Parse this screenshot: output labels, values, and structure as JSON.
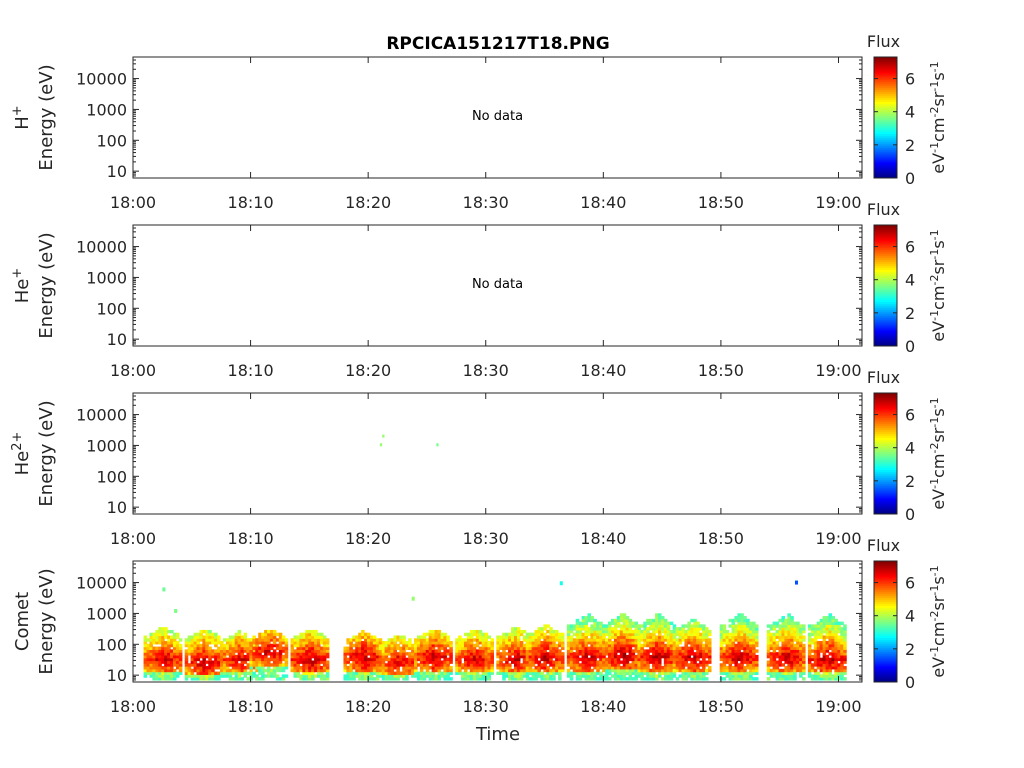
{
  "chart_data": {
    "type": "heatmap",
    "title": "RPCICA151217T18.PNG",
    "xlabel": "Time",
    "x_tick_labels": [
      "18:00",
      "18:10",
      "18:20",
      "18:30",
      "18:40",
      "18:50",
      "19:00"
    ],
    "xlim_minutes": [
      0,
      62
    ],
    "y_scale": "log",
    "ylim": [
      6,
      50000
    ],
    "y_tick_values": [
      10,
      100,
      1000,
      10000
    ],
    "y_tick_labels": [
      "10",
      "100",
      "1000",
      "10000"
    ],
    "colorbar": {
      "title": "Flux",
      "label": "eV⁻¹cm⁻²sr⁻¹s⁻¹",
      "range": [
        0,
        7.3
      ],
      "tick_values": [
        0,
        2,
        4,
        6
      ],
      "tick_labels": [
        "0",
        "2",
        "4",
        "6"
      ],
      "colormap": "jet"
    },
    "panels": [
      {
        "species_html": "H<tspan baseline-shift=\"super\" font-size=\"12\">+</tspan>",
        "species": "H+",
        "ylabel": "Energy (eV)",
        "no_data_text": "No data",
        "has_data": false
      },
      {
        "species": "He+",
        "ylabel": "Energy (eV)",
        "no_data_text": "No data",
        "has_data": false
      },
      {
        "species": "He2+",
        "ylabel": "Energy (eV)",
        "no_data_text": "",
        "has_data": true,
        "points": [
          {
            "t": 21.0,
            "e": 1050,
            "v": 3.8
          },
          {
            "t": 21.2,
            "e": 2000,
            "v": 3.8
          },
          {
            "t": 25.8,
            "e": 1050,
            "v": 3.6
          }
        ]
      },
      {
        "species": "Comet",
        "ylabel": "Energy (eV)",
        "no_data_text": "",
        "has_data": true,
        "bursts": [
          {
            "t": 2.5,
            "e_peak": 30,
            "e_top": 350,
            "v": 6.8
          },
          {
            "t": 6.0,
            "e_peak": 25,
            "e_top": 300,
            "v": 6.9
          },
          {
            "t": 9.0,
            "e_peak": 30,
            "e_top": 250,
            "v": 6.7
          },
          {
            "t": 11.5,
            "e_peak": 50,
            "e_top": 300,
            "v": 6.8
          },
          {
            "t": 15.0,
            "e_peak": 30,
            "e_top": 300,
            "v": 7.0
          },
          {
            "t": 19.5,
            "e_peak": 35,
            "e_top": 250,
            "v": 6.9
          },
          {
            "t": 22.5,
            "e_peak": 25,
            "e_top": 200,
            "v": 6.7
          },
          {
            "t": 25.5,
            "e_peak": 35,
            "e_top": 300,
            "v": 6.9
          },
          {
            "t": 29.0,
            "e_peak": 30,
            "e_top": 300,
            "v": 6.8
          },
          {
            "t": 32.5,
            "e_peak": 30,
            "e_top": 350,
            "v": 6.8
          },
          {
            "t": 35.0,
            "e_peak": 35,
            "e_top": 400,
            "v": 6.9
          },
          {
            "t": 38.5,
            "e_peak": 35,
            "e_top": 900,
            "v": 6.9
          },
          {
            "t": 41.5,
            "e_peak": 40,
            "e_top": 900,
            "v": 7.0
          },
          {
            "t": 44.5,
            "e_peak": 35,
            "e_top": 900,
            "v": 7.0
          },
          {
            "t": 47.5,
            "e_peak": 35,
            "e_top": 600,
            "v": 6.9
          },
          {
            "t": 51.5,
            "e_peak": 35,
            "e_top": 900,
            "v": 6.9
          },
          {
            "t": 55.5,
            "e_peak": 35,
            "e_top": 900,
            "v": 6.9
          },
          {
            "t": 59.0,
            "e_peak": 30,
            "e_top": 900,
            "v": 7.0
          }
        ],
        "isolated": [
          {
            "t": 2.5,
            "e": 6000,
            "v": 3.5
          },
          {
            "t": 3.5,
            "e": 1200,
            "v": 3.6
          },
          {
            "t": 23.7,
            "e": 3000,
            "v": 3.8
          },
          {
            "t": 36.3,
            "e": 9500,
            "v": 2.9
          },
          {
            "t": 56.3,
            "e": 10000,
            "v": 1.5
          }
        ]
      }
    ]
  }
}
